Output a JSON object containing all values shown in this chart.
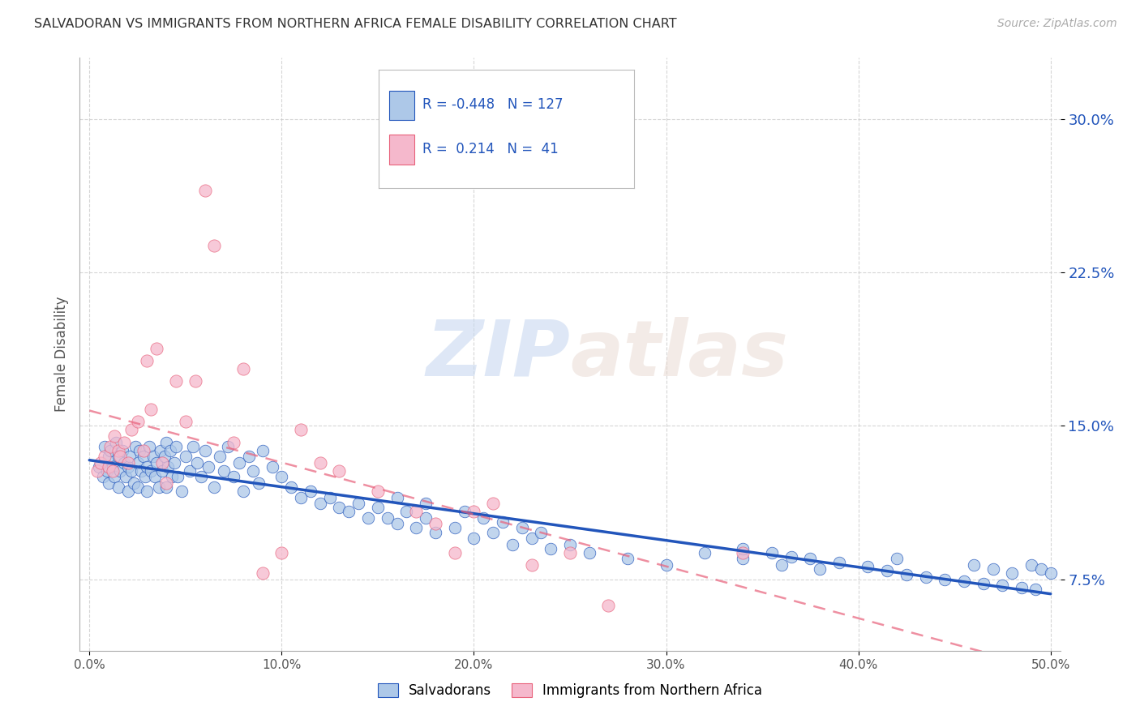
{
  "title": "SALVADORAN VS IMMIGRANTS FROM NORTHERN AFRICA FEMALE DISABILITY CORRELATION CHART",
  "source": "Source: ZipAtlas.com",
  "ylabel": "Female Disability",
  "ytick_labels": [
    "7.5%",
    "15.0%",
    "22.5%",
    "30.0%"
  ],
  "ytick_values": [
    0.075,
    0.15,
    0.225,
    0.3
  ],
  "xtick_values": [
    0.0,
    0.1,
    0.2,
    0.3,
    0.4,
    0.5
  ],
  "xlim": [
    -0.005,
    0.505
  ],
  "ylim": [
    0.04,
    0.33
  ],
  "r_salvadoran": -0.448,
  "n_salvadoran": 127,
  "r_northern_africa": 0.214,
  "n_northern_africa": 41,
  "color_salvadoran": "#adc8e8",
  "color_northern_africa": "#f5b8cc",
  "line_color_salvadoran": "#2255bb",
  "line_color_northern_africa": "#e8607a",
  "background_color": "#ffffff",
  "salvadoran_x": [
    0.005,
    0.007,
    0.008,
    0.009,
    0.01,
    0.01,
    0.011,
    0.012,
    0.013,
    0.014,
    0.015,
    0.015,
    0.016,
    0.017,
    0.018,
    0.019,
    0.02,
    0.02,
    0.021,
    0.022,
    0.023,
    0.024,
    0.025,
    0.025,
    0.026,
    0.027,
    0.028,
    0.029,
    0.03,
    0.03,
    0.031,
    0.032,
    0.033,
    0.034,
    0.035,
    0.036,
    0.037,
    0.038,
    0.039,
    0.04,
    0.04,
    0.041,
    0.042,
    0.043,
    0.044,
    0.045,
    0.046,
    0.048,
    0.05,
    0.052,
    0.054,
    0.056,
    0.058,
    0.06,
    0.062,
    0.065,
    0.068,
    0.07,
    0.072,
    0.075,
    0.078,
    0.08,
    0.083,
    0.085,
    0.088,
    0.09,
    0.095,
    0.1,
    0.105,
    0.11,
    0.115,
    0.12,
    0.125,
    0.13,
    0.135,
    0.14,
    0.145,
    0.15,
    0.155,
    0.16,
    0.165,
    0.17,
    0.175,
    0.18,
    0.19,
    0.2,
    0.21,
    0.22,
    0.23,
    0.24,
    0.25,
    0.26,
    0.28,
    0.3,
    0.32,
    0.34,
    0.36,
    0.38,
    0.42,
    0.46,
    0.47,
    0.48,
    0.49,
    0.495,
    0.5,
    0.34,
    0.355,
    0.365,
    0.375,
    0.39,
    0.405,
    0.415,
    0.425,
    0.435,
    0.445,
    0.455,
    0.465,
    0.475,
    0.485,
    0.492,
    0.16,
    0.175,
    0.195,
    0.205,
    0.215,
    0.225,
    0.235
  ],
  "salvadoran_y": [
    0.13,
    0.125,
    0.14,
    0.128,
    0.135,
    0.122,
    0.138,
    0.13,
    0.125,
    0.142,
    0.135,
    0.12,
    0.128,
    0.138,
    0.132,
    0.125,
    0.13,
    0.118,
    0.135,
    0.128,
    0.122,
    0.14,
    0.132,
    0.12,
    0.138,
    0.128,
    0.135,
    0.125,
    0.13,
    0.118,
    0.14,
    0.128,
    0.135,
    0.125,
    0.132,
    0.12,
    0.138,
    0.128,
    0.135,
    0.142,
    0.12,
    0.13,
    0.138,
    0.125,
    0.132,
    0.14,
    0.125,
    0.118,
    0.135,
    0.128,
    0.14,
    0.132,
    0.125,
    0.138,
    0.13,
    0.12,
    0.135,
    0.128,
    0.14,
    0.125,
    0.132,
    0.118,
    0.135,
    0.128,
    0.122,
    0.138,
    0.13,
    0.125,
    0.12,
    0.115,
    0.118,
    0.112,
    0.115,
    0.11,
    0.108,
    0.112,
    0.105,
    0.11,
    0.105,
    0.102,
    0.108,
    0.1,
    0.105,
    0.098,
    0.1,
    0.095,
    0.098,
    0.092,
    0.095,
    0.09,
    0.092,
    0.088,
    0.085,
    0.082,
    0.088,
    0.085,
    0.082,
    0.08,
    0.085,
    0.082,
    0.08,
    0.078,
    0.082,
    0.08,
    0.078,
    0.09,
    0.088,
    0.086,
    0.085,
    0.083,
    0.081,
    0.079,
    0.077,
    0.076,
    0.075,
    0.074,
    0.073,
    0.072,
    0.071,
    0.07,
    0.115,
    0.112,
    0.108,
    0.105,
    0.103,
    0.1,
    0.098
  ],
  "northern_africa_x": [
    0.004,
    0.006,
    0.008,
    0.01,
    0.011,
    0.012,
    0.013,
    0.015,
    0.016,
    0.018,
    0.02,
    0.022,
    0.025,
    0.028,
    0.03,
    0.032,
    0.035,
    0.038,
    0.04,
    0.045,
    0.05,
    0.055,
    0.06,
    0.065,
    0.075,
    0.08,
    0.09,
    0.1,
    0.11,
    0.12,
    0.13,
    0.15,
    0.17,
    0.18,
    0.19,
    0.2,
    0.21,
    0.23,
    0.25,
    0.27,
    0.34
  ],
  "northern_africa_y": [
    0.128,
    0.132,
    0.135,
    0.13,
    0.14,
    0.128,
    0.145,
    0.138,
    0.135,
    0.142,
    0.132,
    0.148,
    0.152,
    0.138,
    0.182,
    0.158,
    0.188,
    0.132,
    0.122,
    0.172,
    0.152,
    0.172,
    0.265,
    0.238,
    0.142,
    0.178,
    0.078,
    0.088,
    0.148,
    0.132,
    0.128,
    0.118,
    0.108,
    0.102,
    0.088,
    0.108,
    0.112,
    0.082,
    0.088,
    0.062,
    0.088
  ]
}
